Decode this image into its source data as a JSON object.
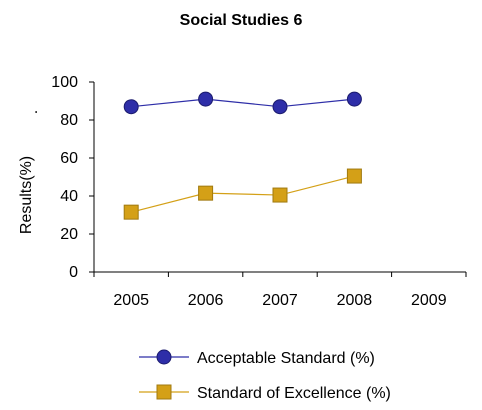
{
  "chart_data": {
    "type": "line",
    "title": "Social Studies 6",
    "ylabel": "Results(%)",
    "ylabel_prefix": ".",
    "xlabel": "",
    "categories": [
      "2005",
      "2006",
      "2007",
      "2008",
      "2009"
    ],
    "ylim": [
      0,
      100
    ],
    "yticks": [
      0,
      20,
      40,
      60,
      80,
      100
    ],
    "grid": false,
    "legend_position": "bottom",
    "series": [
      {
        "name": "Acceptable Standard (%)",
        "values": [
          87,
          91,
          87,
          91,
          null
        ],
        "color": "#2E2EA8",
        "marker": "circle"
      },
      {
        "name": "Standard of Excellence (%)",
        "values": [
          31.5,
          41.5,
          40.5,
          50.5,
          null
        ],
        "color": "#D4A017",
        "marker": "square"
      }
    ]
  }
}
